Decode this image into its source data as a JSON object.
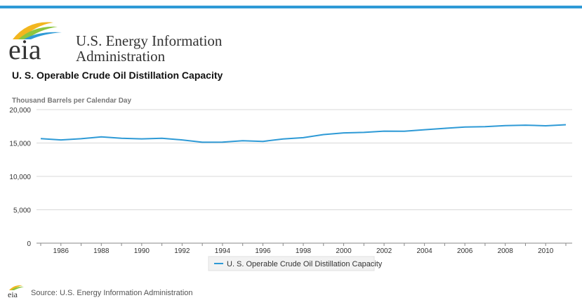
{
  "brand": {
    "logo_text": "eia",
    "name_line1": "U.S. Energy Information",
    "name_line2": "Administration"
  },
  "chart_data": {
    "type": "line",
    "title": "U. S. Operable Crude Oil Distillation Capacity",
    "ylabel": "Thousand Barrels per Calendar Day",
    "xlabel": "",
    "x": [
      1985,
      1986,
      1987,
      1988,
      1989,
      1990,
      1991,
      1992,
      1993,
      1994,
      1995,
      1996,
      1997,
      1998,
      1999,
      2000,
      2001,
      2002,
      2003,
      2004,
      2005,
      2006,
      2007,
      2008,
      2009,
      2010,
      2011
    ],
    "xlim": [
      1985,
      2011
    ],
    "ylim": [
      0,
      20000
    ],
    "yticks": [
      "0",
      "5,000",
      "10,000",
      "15,000",
      "20,000"
    ],
    "ytick_values": [
      0,
      5000,
      10000,
      15000,
      20000
    ],
    "xticks": [
      "1986",
      "1988",
      "1990",
      "1992",
      "1994",
      "1996",
      "1998",
      "2000",
      "2002",
      "2004",
      "2006",
      "2008",
      "2010"
    ],
    "xtick_values": [
      1986,
      1988,
      1990,
      1992,
      1994,
      1996,
      1998,
      2000,
      2002,
      2004,
      2006,
      2008,
      2010
    ],
    "series": [
      {
        "name": "U. S. Operable Crude Oil Distillation Capacity",
        "color": "#2e9ad6",
        "values": [
          15660,
          15460,
          15640,
          15930,
          15700,
          15620,
          15700,
          15460,
          15120,
          15130,
          15350,
          15240,
          15600,
          15800,
          16260,
          16520,
          16590,
          16780,
          16760,
          16990,
          17200,
          17390,
          17440,
          17610,
          17670,
          17580,
          17740
        ]
      }
    ],
    "grid": "horizontal",
    "legend_position": "bottom-center"
  },
  "footer": {
    "source_text": "Source: U.S. Energy Information Administration",
    "small_logo_text": "eia"
  }
}
